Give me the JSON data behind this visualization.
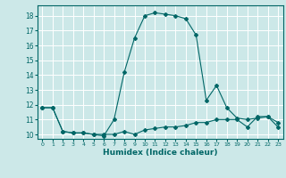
{
  "xlabel": "Humidex (Indice chaleur)",
  "ylabel": "",
  "background_color": "#cce8e8",
  "grid_color": "#ffffff",
  "line_color": "#006666",
  "xlim": [
    -0.5,
    23.5
  ],
  "ylim": [
    9.7,
    18.7
  ],
  "yticks": [
    10,
    11,
    12,
    13,
    14,
    15,
    16,
    17,
    18
  ],
  "xticks": [
    0,
    1,
    2,
    3,
    4,
    5,
    6,
    7,
    8,
    9,
    10,
    11,
    12,
    13,
    14,
    15,
    16,
    17,
    18,
    19,
    20,
    21,
    22,
    23
  ],
  "series1_x": [
    0,
    1,
    2,
    3,
    4,
    5,
    6,
    7,
    8,
    9,
    10,
    11,
    12,
    13,
    14,
    15,
    16,
    17,
    18,
    19,
    20,
    21,
    22,
    23
  ],
  "series1_y": [
    11.8,
    11.8,
    10.2,
    10.1,
    10.1,
    10.0,
    10.0,
    10.0,
    10.2,
    10.0,
    10.3,
    10.4,
    10.5,
    10.5,
    10.6,
    10.8,
    10.8,
    11.0,
    11.0,
    11.0,
    10.5,
    11.2,
    11.2,
    10.5
  ],
  "series2_x": [
    0,
    1,
    2,
    3,
    4,
    5,
    6,
    7,
    8,
    9,
    10,
    11,
    12,
    13,
    14,
    15,
    16,
    17,
    18,
    19,
    20,
    21,
    22,
    23
  ],
  "series2_y": [
    11.8,
    11.8,
    10.2,
    10.1,
    10.1,
    10.0,
    9.9,
    11.0,
    14.2,
    16.5,
    18.0,
    18.2,
    18.1,
    18.0,
    17.8,
    16.7,
    12.3,
    13.3,
    11.8,
    11.1,
    11.0,
    11.1,
    11.2,
    10.8
  ]
}
